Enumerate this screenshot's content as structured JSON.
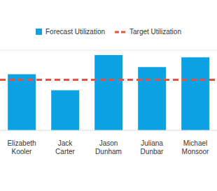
{
  "chart_data": {
    "type": "bar",
    "categories": [
      "Elizabeth Kooler",
      "Jack Carter",
      "Jason Dunham",
      "Juliana Dunbar",
      "Michael Monsoor"
    ],
    "series": [
      {
        "name": "Forecast Utilization",
        "color": "#0ba1e2",
        "values": [
          70,
          50,
          94,
          79,
          91
        ]
      }
    ],
    "target": {
      "name": "Target Utilization",
      "value": 63,
      "color": "#e8533f",
      "line_style": "dashed"
    },
    "ylim": [
      0,
      100
    ],
    "yticks": [
      0,
      50,
      100
    ],
    "grid": true,
    "tick_labels": "x",
    "legend": "top"
  }
}
